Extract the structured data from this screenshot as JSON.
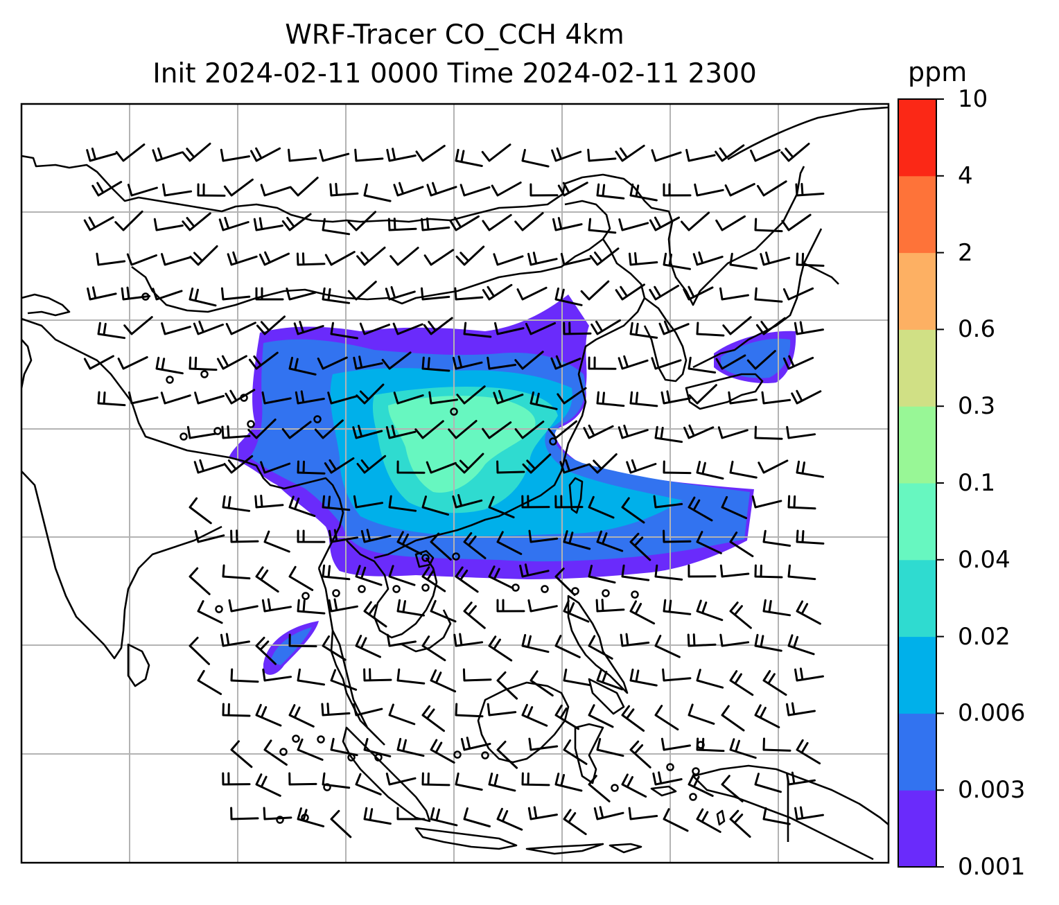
{
  "title_line1": "WRF-Tracer CO_CCH 4km",
  "title_line2": "Init 2024-02-11 0000 Time 2024-02-11 2300",
  "colorbar": {
    "unit": "ppm",
    "levels": [
      "0.001",
      "0.003",
      "0.006",
      "0.02",
      "0.04",
      "0.1",
      "0.3",
      "0.6",
      "2",
      "4",
      "10"
    ],
    "colors": [
      "#6a2bfb",
      "#3273f0",
      "#00b0ea",
      "#2fdbd0",
      "#67f7c0",
      "#98f796",
      "#d0e085",
      "#fdb063",
      "#fe7339",
      "#fb2816"
    ]
  },
  "map": {
    "frame_color": "#000000",
    "grid_color": "#b3b3b3",
    "coast_color": "#000000",
    "barb_color": "#000000",
    "calm_stations": 34
  }
}
